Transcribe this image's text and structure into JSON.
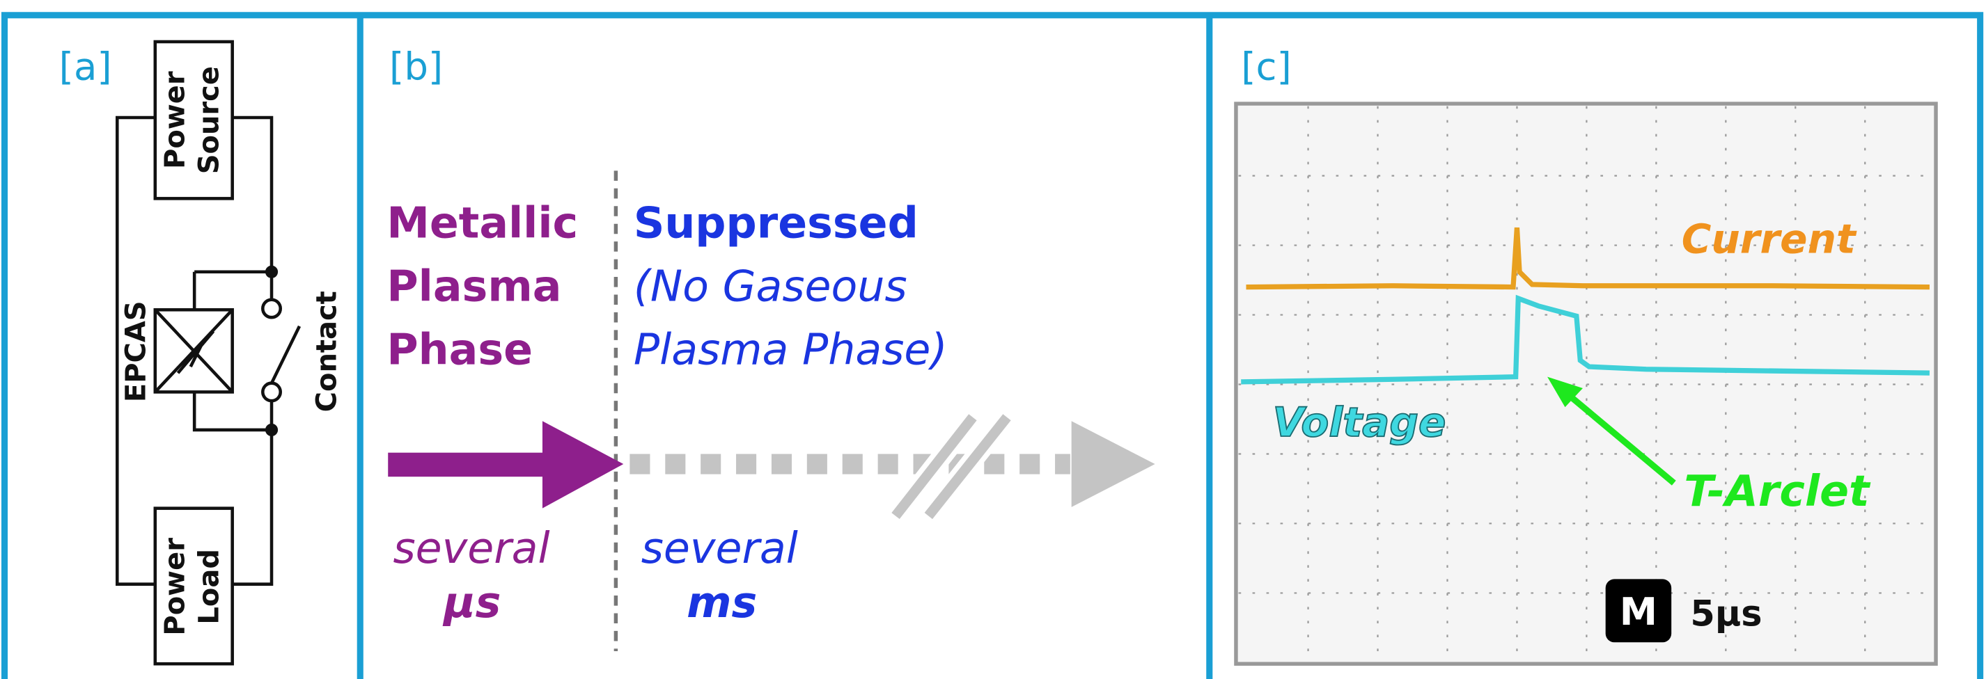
{
  "panels": [
    {
      "label": "[a]",
      "power_source": [
        "Power",
        "Source"
      ],
      "epcas": "EPCAS",
      "contact": "Contact",
      "power_load": [
        "Power",
        "Load"
      ]
    },
    {
      "label": "[b]",
      "left_phase": [
        "Metallic",
        "Plasma",
        "Phase"
      ],
      "right_phase_title": "Suppressed",
      "right_phase_note": [
        "(No Gaseous",
        "Plasma Phase)"
      ],
      "left_duration": [
        "several",
        "μs"
      ],
      "right_duration": [
        "several",
        "ms"
      ]
    },
    {
      "label": "[c]",
      "current": "Current",
      "voltage": "Voltage",
      "arclet": "T-Arclet",
      "timebase_badge": "M",
      "timebase": "5μs"
    }
  ]
}
